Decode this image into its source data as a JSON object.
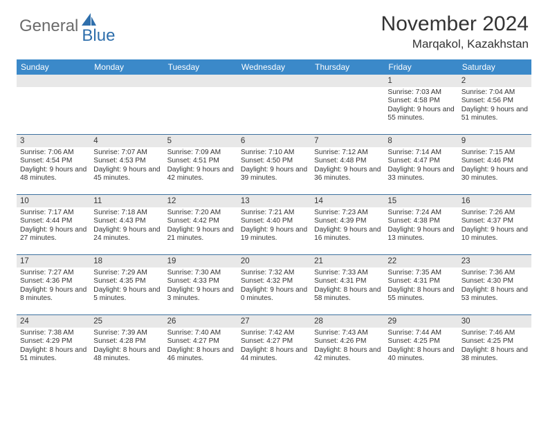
{
  "brand": {
    "text1": "General",
    "text2": "Blue"
  },
  "title": "November 2024",
  "location": "Marqakol, Kazakhstan",
  "colors": {
    "header_blue": "#3b89c9",
    "row_border": "#3b6f9e",
    "daynum_bg": "#e8e8e8",
    "text": "#333333",
    "brand_gray": "#6b6b6b",
    "brand_blue": "#2f6fac"
  },
  "weekdays": [
    "Sunday",
    "Monday",
    "Tuesday",
    "Wednesday",
    "Thursday",
    "Friday",
    "Saturday"
  ],
  "weeks": [
    [
      {
        "n": "",
        "lines": []
      },
      {
        "n": "",
        "lines": []
      },
      {
        "n": "",
        "lines": []
      },
      {
        "n": "",
        "lines": []
      },
      {
        "n": "",
        "lines": []
      },
      {
        "n": "1",
        "lines": [
          "Sunrise: 7:03 AM",
          "Sunset: 4:58 PM",
          "Daylight: 9 hours and 55 minutes."
        ]
      },
      {
        "n": "2",
        "lines": [
          "Sunrise: 7:04 AM",
          "Sunset: 4:56 PM",
          "Daylight: 9 hours and 51 minutes."
        ]
      }
    ],
    [
      {
        "n": "3",
        "lines": [
          "Sunrise: 7:06 AM",
          "Sunset: 4:54 PM",
          "Daylight: 9 hours and 48 minutes."
        ]
      },
      {
        "n": "4",
        "lines": [
          "Sunrise: 7:07 AM",
          "Sunset: 4:53 PM",
          "Daylight: 9 hours and 45 minutes."
        ]
      },
      {
        "n": "5",
        "lines": [
          "Sunrise: 7:09 AM",
          "Sunset: 4:51 PM",
          "Daylight: 9 hours and 42 minutes."
        ]
      },
      {
        "n": "6",
        "lines": [
          "Sunrise: 7:10 AM",
          "Sunset: 4:50 PM",
          "Daylight: 9 hours and 39 minutes."
        ]
      },
      {
        "n": "7",
        "lines": [
          "Sunrise: 7:12 AM",
          "Sunset: 4:48 PM",
          "Daylight: 9 hours and 36 minutes."
        ]
      },
      {
        "n": "8",
        "lines": [
          "Sunrise: 7:14 AM",
          "Sunset: 4:47 PM",
          "Daylight: 9 hours and 33 minutes."
        ]
      },
      {
        "n": "9",
        "lines": [
          "Sunrise: 7:15 AM",
          "Sunset: 4:46 PM",
          "Daylight: 9 hours and 30 minutes."
        ]
      }
    ],
    [
      {
        "n": "10",
        "lines": [
          "Sunrise: 7:17 AM",
          "Sunset: 4:44 PM",
          "Daylight: 9 hours and 27 minutes."
        ]
      },
      {
        "n": "11",
        "lines": [
          "Sunrise: 7:18 AM",
          "Sunset: 4:43 PM",
          "Daylight: 9 hours and 24 minutes."
        ]
      },
      {
        "n": "12",
        "lines": [
          "Sunrise: 7:20 AM",
          "Sunset: 4:42 PM",
          "Daylight: 9 hours and 21 minutes."
        ]
      },
      {
        "n": "13",
        "lines": [
          "Sunrise: 7:21 AM",
          "Sunset: 4:40 PM",
          "Daylight: 9 hours and 19 minutes."
        ]
      },
      {
        "n": "14",
        "lines": [
          "Sunrise: 7:23 AM",
          "Sunset: 4:39 PM",
          "Daylight: 9 hours and 16 minutes."
        ]
      },
      {
        "n": "15",
        "lines": [
          "Sunrise: 7:24 AM",
          "Sunset: 4:38 PM",
          "Daylight: 9 hours and 13 minutes."
        ]
      },
      {
        "n": "16",
        "lines": [
          "Sunrise: 7:26 AM",
          "Sunset: 4:37 PM",
          "Daylight: 9 hours and 10 minutes."
        ]
      }
    ],
    [
      {
        "n": "17",
        "lines": [
          "Sunrise: 7:27 AM",
          "Sunset: 4:36 PM",
          "Daylight: 9 hours and 8 minutes."
        ]
      },
      {
        "n": "18",
        "lines": [
          "Sunrise: 7:29 AM",
          "Sunset: 4:35 PM",
          "Daylight: 9 hours and 5 minutes."
        ]
      },
      {
        "n": "19",
        "lines": [
          "Sunrise: 7:30 AM",
          "Sunset: 4:33 PM",
          "Daylight: 9 hours and 3 minutes."
        ]
      },
      {
        "n": "20",
        "lines": [
          "Sunrise: 7:32 AM",
          "Sunset: 4:32 PM",
          "Daylight: 9 hours and 0 minutes."
        ]
      },
      {
        "n": "21",
        "lines": [
          "Sunrise: 7:33 AM",
          "Sunset: 4:31 PM",
          "Daylight: 8 hours and 58 minutes."
        ]
      },
      {
        "n": "22",
        "lines": [
          "Sunrise: 7:35 AM",
          "Sunset: 4:31 PM",
          "Daylight: 8 hours and 55 minutes."
        ]
      },
      {
        "n": "23",
        "lines": [
          "Sunrise: 7:36 AM",
          "Sunset: 4:30 PM",
          "Daylight: 8 hours and 53 minutes."
        ]
      }
    ],
    [
      {
        "n": "24",
        "lines": [
          "Sunrise: 7:38 AM",
          "Sunset: 4:29 PM",
          "Daylight: 8 hours and 51 minutes."
        ]
      },
      {
        "n": "25",
        "lines": [
          "Sunrise: 7:39 AM",
          "Sunset: 4:28 PM",
          "Daylight: 8 hours and 48 minutes."
        ]
      },
      {
        "n": "26",
        "lines": [
          "Sunrise: 7:40 AM",
          "Sunset: 4:27 PM",
          "Daylight: 8 hours and 46 minutes."
        ]
      },
      {
        "n": "27",
        "lines": [
          "Sunrise: 7:42 AM",
          "Sunset: 4:27 PM",
          "Daylight: 8 hours and 44 minutes."
        ]
      },
      {
        "n": "28",
        "lines": [
          "Sunrise: 7:43 AM",
          "Sunset: 4:26 PM",
          "Daylight: 8 hours and 42 minutes."
        ]
      },
      {
        "n": "29",
        "lines": [
          "Sunrise: 7:44 AM",
          "Sunset: 4:25 PM",
          "Daylight: 8 hours and 40 minutes."
        ]
      },
      {
        "n": "30",
        "lines": [
          "Sunrise: 7:46 AM",
          "Sunset: 4:25 PM",
          "Daylight: 8 hours and 38 minutes."
        ]
      }
    ]
  ]
}
